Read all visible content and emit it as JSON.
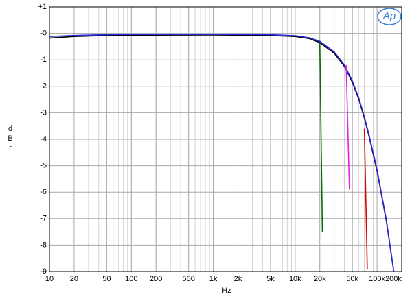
{
  "chart_data": {
    "type": "line",
    "x_label": "Hz",
    "y_label": [
      "d",
      "B",
      "r"
    ],
    "logo": "Ap",
    "xscale": "log",
    "grid": true,
    "xlim": [
      10,
      200000
    ],
    "ylim": [
      -9,
      1
    ],
    "xticks": [
      10,
      20,
      50,
      100,
      200,
      500,
      {
        "value": 1000,
        "label": "1k"
      },
      {
        "value": 2000,
        "label": "2k"
      },
      {
        "value": 5000,
        "label": "5k"
      },
      {
        "value": 10000,
        "label": "10k"
      },
      {
        "value": 20000,
        "label": "20k"
      },
      {
        "value": 50000,
        "label": "50k"
      },
      {
        "value": 100000,
        "label": "100k"
      },
      {
        "value": 200000,
        "label": "200k"
      }
    ],
    "yticks": [
      {
        "value": 1,
        "label": "+1"
      },
      {
        "value": 0,
        "label": "-0"
      },
      -1,
      -2,
      -3,
      -4,
      -5,
      -6,
      -7,
      -8,
      -9
    ],
    "series": [
      {
        "color": "#000000",
        "x": [
          10,
          20,
          50,
          100,
          1000,
          5000,
          10000,
          15000,
          20000,
          30000,
          40000,
          50000,
          60000,
          70000,
          80000,
          100000,
          130000,
          160000
        ],
        "values": [
          -0.18,
          -0.12,
          -0.08,
          -0.07,
          -0.06,
          -0.08,
          -0.12,
          -0.2,
          -0.35,
          -0.75,
          -1.25,
          -1.85,
          -2.5,
          -3.2,
          -3.9,
          -5.2,
          -7.1,
          -9
        ]
      },
      {
        "color": "#2a2ae0",
        "x": [
          10,
          20,
          50,
          100,
          1000,
          5000,
          10000,
          15000,
          20000,
          30000,
          40000,
          50000,
          60000,
          70000,
          80000,
          100000,
          130000,
          160000
        ],
        "values": [
          -0.12,
          -0.08,
          -0.05,
          -0.04,
          -0.04,
          -0.05,
          -0.09,
          -0.17,
          -0.3,
          -0.7,
          -1.2,
          -1.8,
          -2.45,
          -3.15,
          -3.85,
          -5.15,
          -7.05,
          -9
        ]
      },
      {
        "color": "#0a6a0a",
        "x": [
          20000,
          21500
        ],
        "values": [
          -0.35,
          -7.5
        ]
      },
      {
        "color": "#e020e0",
        "x": [
          42000,
          46000
        ],
        "values": [
          -1.2,
          -5.9
        ]
      },
      {
        "color": "#e00000",
        "x": [
          70000,
          76000
        ],
        "values": [
          -3.6,
          -8.9
        ]
      }
    ]
  }
}
